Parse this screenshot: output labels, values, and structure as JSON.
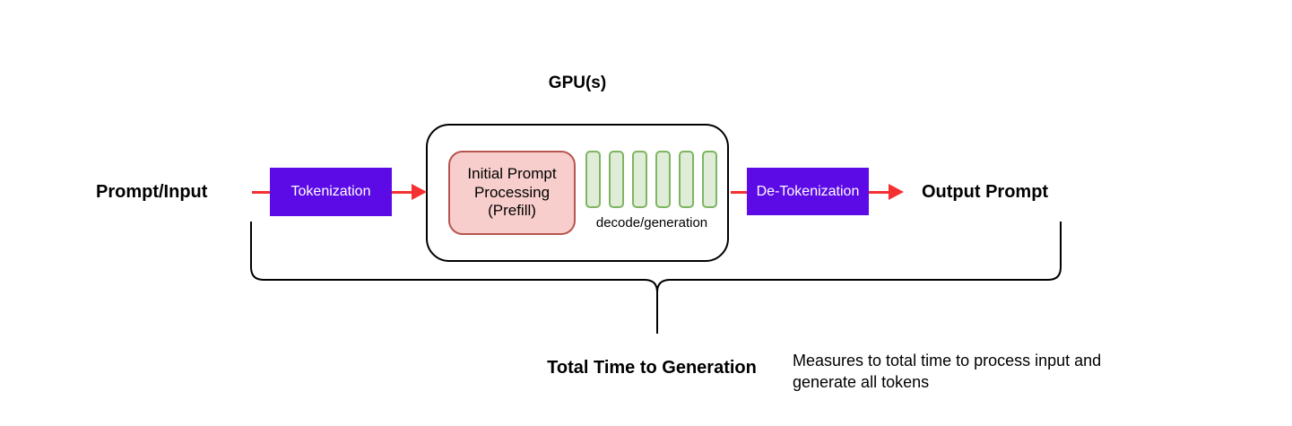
{
  "diagram": {
    "title": "GPU(s)",
    "nodes": {
      "input_label": "Prompt/Input",
      "tokenization": "Tokenization",
      "prefill": "Initial Prompt Processing (Prefill)",
      "decode_caption": "decode/generation",
      "decode_bars_count": 6,
      "detokenization": "De-Tokenization",
      "output_label": "Output Prompt"
    },
    "annotation": {
      "brace_label": "Total Time to Generation",
      "note": "Measures to total time to process input and generate all tokens"
    },
    "colors": {
      "box_purple": "#5C0BE6",
      "arrow_red": "#F53030",
      "prefill_fill": "#F8CECC",
      "prefill_border": "#B85450",
      "bar_fill": "#DFEDD8",
      "bar_border": "#7FB461",
      "outline_black": "#000000"
    }
  }
}
